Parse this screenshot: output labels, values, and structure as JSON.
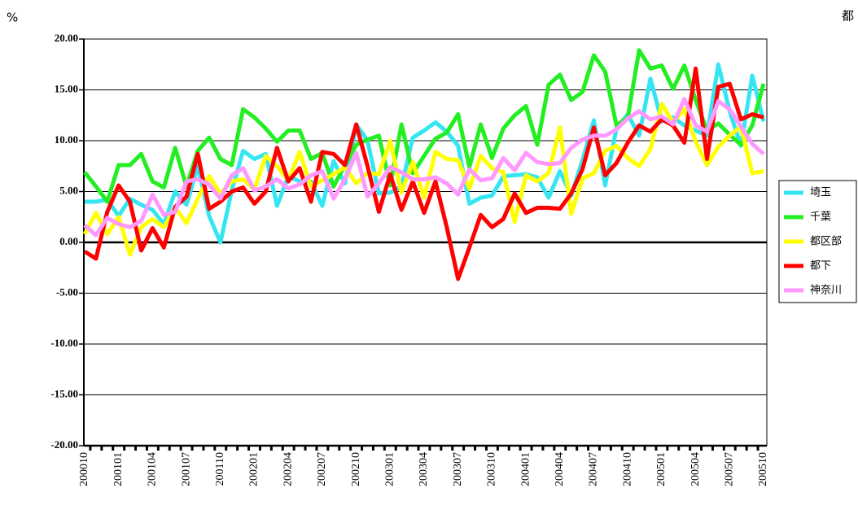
{
  "chart_data": {
    "type": "line",
    "y_unit": "%",
    "annotation": "都",
    "categories": [
      "200010",
      null,
      null,
      "200101",
      null,
      null,
      "200104",
      null,
      null,
      "200107",
      null,
      null,
      "200110",
      null,
      null,
      "200201",
      null,
      null,
      "200204",
      null,
      null,
      "200207",
      null,
      null,
      "200210",
      null,
      null,
      "200301",
      null,
      null,
      "200304",
      null,
      null,
      "200307",
      null,
      null,
      "200310",
      null,
      null,
      "200401",
      null,
      null,
      "200404",
      null,
      null,
      "200407",
      null,
      null,
      "200410",
      null,
      null,
      "200501",
      null,
      null,
      "200504",
      null,
      null,
      "200507",
      null,
      null,
      "200510"
    ],
    "series": [
      {
        "name": "埼玉",
        "color": "#33e6f2",
        "values": [
          4,
          4,
          4.2,
          2.6,
          4.3,
          3.7,
          3.2,
          1.8,
          5,
          3.7,
          7.5,
          2.6,
          0,
          5.1,
          9,
          8.2,
          8.7,
          3.6,
          6.5,
          6,
          6,
          3.6,
          8,
          5.8,
          11.6,
          10,
          4.8,
          4.9,
          5.5,
          10.3,
          11,
          11.8,
          10.9,
          9.5,
          3.8,
          4.4,
          4.6,
          6.5,
          6.6,
          6.7,
          6.4,
          4.4,
          7,
          4.6,
          8.1,
          12,
          5.6,
          11.2,
          12.6,
          10.5,
          16.1,
          11.9,
          12.3,
          11.5,
          11,
          10.5,
          17.5,
          12.9,
          9.5,
          16.4,
          11.9
        ]
      },
      {
        "name": "千葉",
        "color": "#22ee22",
        "values": [
          6.9,
          5.5,
          4,
          7.6,
          7.6,
          8.7,
          6,
          5.4,
          9.3,
          5.5,
          9,
          10.3,
          8.2,
          7.6,
          13.1,
          12.3,
          11.2,
          9.9,
          11,
          11,
          8.2,
          8.8,
          5.5,
          7.6,
          9.6,
          10.1,
          10.5,
          5.6,
          11.6,
          6.8,
          8.5,
          10.2,
          10.8,
          12.6,
          7.4,
          11.6,
          8.3,
          11.2,
          12.5,
          13.4,
          9.6,
          15.5,
          16.5,
          14,
          14.8,
          18.4,
          16.8,
          11.5,
          12.3,
          18.9,
          17.1,
          17.4,
          15.1,
          17.4,
          14,
          11,
          11.7,
          10.6,
          9.6,
          11.5,
          15.6
        ]
      },
      {
        "name": "都区部",
        "color": "#ffff00",
        "values": [
          0.8,
          2.9,
          0.8,
          2.5,
          -1.2,
          1.5,
          2.3,
          1.5,
          3.4,
          1.9,
          4.3,
          6.5,
          4.8,
          6,
          6.2,
          5.2,
          8.5,
          7.5,
          6.1,
          8.9,
          5.5,
          6.1,
          6.7,
          7.4,
          5.8,
          6.8,
          6.7,
          10,
          4.9,
          7.9,
          4.4,
          8.9,
          8.2,
          8.1,
          5.3,
          8.5,
          7.3,
          6.9,
          2,
          6.6,
          6,
          6.8,
          11.3,
          2.8,
          6.3,
          6.8,
          9,
          9.5,
          8.3,
          7.5,
          9.2,
          13.6,
          11.8,
          13.1,
          9.9,
          7.6,
          9.4,
          10.5,
          11.4,
          6.8,
          7
        ]
      },
      {
        "name": "都下",
        "color": "#ff0000",
        "values": [
          -0.9,
          -1.6,
          3,
          5.6,
          4,
          -0.8,
          1.4,
          -0.5,
          3.5,
          4.5,
          8.7,
          3.3,
          4,
          5,
          5.4,
          3.8,
          5,
          9.3,
          6,
          7.3,
          4,
          8.9,
          8.7,
          7.6,
          11.6,
          7.5,
          3,
          6.7,
          3.2,
          6,
          2.9,
          6,
          1.5,
          -3.6,
          -0.5,
          2.7,
          1.5,
          2.3,
          4.8,
          2.9,
          3.4,
          3.4,
          3.3,
          4.8,
          7.2,
          11.3,
          6.6,
          7.8,
          9.8,
          11.5,
          10.9,
          12.1,
          11.5,
          9.8,
          17.1,
          8.2,
          15.3,
          15.6,
          12.1,
          12.6,
          12.3
        ]
      },
      {
        "name": "神奈川",
        "color": "#ff99ff",
        "values": [
          1.7,
          0.7,
          2.4,
          1.8,
          1.5,
          2.1,
          4.7,
          2.7,
          3,
          6,
          6.2,
          5.7,
          4.3,
          6.6,
          7.3,
          5.1,
          5.5,
          6.2,
          5.3,
          5.7,
          6.6,
          7,
          4.3,
          6.2,
          8.8,
          4.5,
          5.8,
          7.4,
          6.9,
          6.2,
          6.2,
          6.4,
          5.8,
          4.7,
          7.2,
          6.1,
          6.3,
          8.3,
          7.1,
          8.8,
          7.9,
          7.7,
          7.8,
          9.3,
          10.1,
          10.5,
          10.5,
          11.1,
          12.2,
          12.9,
          12.1,
          12.4,
          11.6,
          14.1,
          11.5,
          10.9,
          13.9,
          13.1,
          11.4,
          9.7,
          8.7
        ]
      }
    ],
    "ylim": [
      -20,
      20
    ],
    "yticks": [
      {
        "value": -20,
        "label": "-20.00"
      },
      {
        "value": -15,
        "label": "-15.00"
      },
      {
        "value": -10,
        "label": "-10.00"
      },
      {
        "value": -5,
        "label": "-5.00"
      },
      {
        "value": 0,
        "label": "0.00"
      },
      {
        "value": 5,
        "label": "5.00"
      },
      {
        "value": 10,
        "label": "10.00"
      },
      {
        "value": 15,
        "label": "15.00"
      },
      {
        "value": 20,
        "label": "20.00"
      }
    ],
    "grid": true
  }
}
